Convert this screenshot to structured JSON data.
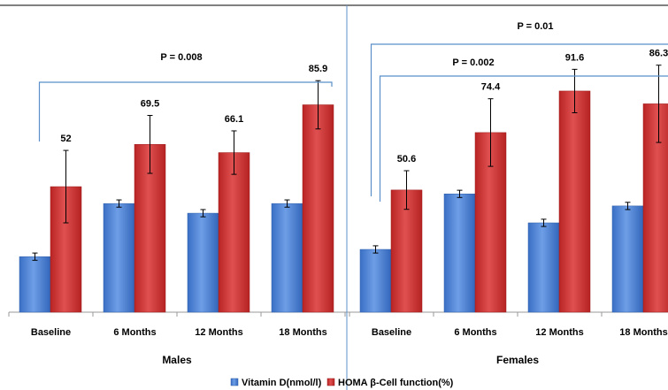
{
  "chart_data": {
    "type": "bar",
    "categories": [
      "Baseline",
      "6 Months",
      "12 Months",
      "18 Months"
    ],
    "groups": [
      {
        "name": "Males",
        "series": [
          {
            "name": "Vitamin D(nmol/l)",
            "values": [
              23,
              45,
              41,
              45
            ],
            "error": [
              1.5,
              1.5,
              1.5,
              1.5
            ]
          },
          {
            "name": "HOMA β-Cell function(%)",
            "values": [
              52,
              69.5,
              66.1,
              85.9
            ],
            "error": [
              15,
              12,
              9,
              10
            ],
            "labels": [
              "52",
              "69.5",
              "66.1",
              "85.9"
            ]
          }
        ],
        "significance": [
          {
            "text": "P = 0.008",
            "from": 0,
            "to": 3
          }
        ]
      },
      {
        "name": "Females",
        "series": [
          {
            "name": "Vitamin D(nmol/l)",
            "values": [
              26,
              49,
              37,
              44
            ],
            "error": [
              1.5,
              1.5,
              1.5,
              1.5
            ]
          },
          {
            "name": "HOMA β-Cell function(%)",
            "values": [
              50.6,
              74.4,
              91.6,
              86.3
            ],
            "error": [
              8,
              14,
              9,
              16
            ],
            "labels": [
              "50.6",
              "74.4",
              "91.6",
              "86.3"
            ]
          }
        ],
        "significance": [
          {
            "text": "P = 0.01",
            "from": 0,
            "to": 3
          },
          {
            "text": "P = 0.002",
            "from": 0,
            "to": 2
          }
        ]
      }
    ],
    "ylim": [
      0,
      100
    ],
    "grid": false,
    "legend": "bottom-center",
    "colors": {
      "Vitamin D(nmol/l)": "#4a7fd1",
      "HOMA β-Cell function(%)": "#cc3433"
    }
  }
}
